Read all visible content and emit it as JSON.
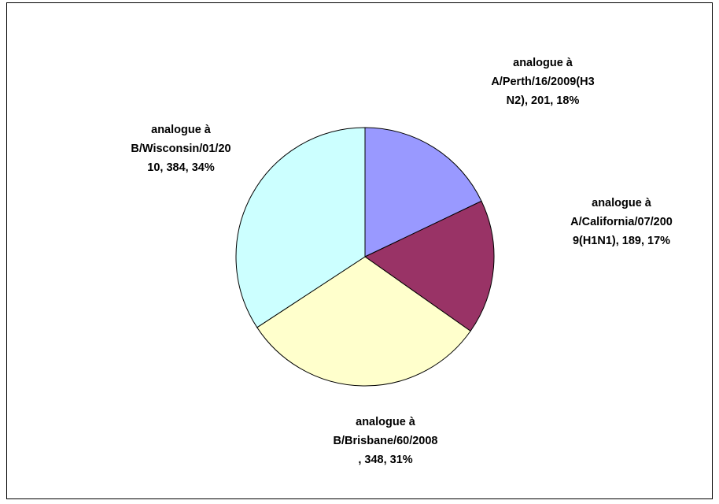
{
  "chart_data": {
    "type": "pie",
    "values": [
      201,
      189,
      348,
      384
    ],
    "value_labels": [
      [
        "analogue à",
        "A/Perth/16/2009(H3",
        "N2), 201, 18%"
      ],
      [
        "analogue à",
        "A/California/07/200",
        "9(H1N1), 189, 17%"
      ],
      [
        "analogue à",
        "B/Brisbane/60/2008",
        ", 348, 31%"
      ],
      [
        "analogue à",
        "B/Wisconsin/01/20",
        "10, 384, 34%"
      ]
    ],
    "colors": [
      "#9999ff",
      "#993366",
      "#ffffcc",
      "#ccffff"
    ]
  }
}
